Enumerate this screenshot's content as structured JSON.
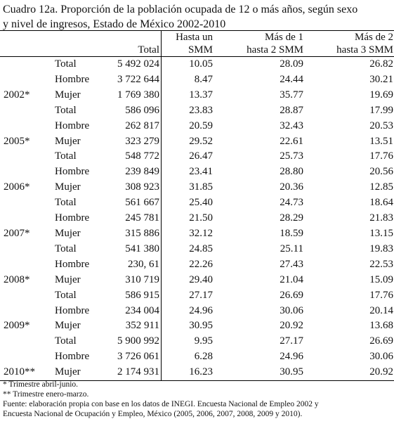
{
  "title": {
    "line1": "Cuadro 12a. Proporción de la población ocupada de 12 o más años, según sexo",
    "line2": "y nivel de ingresos, Estado de México 2002-2010"
  },
  "headers": {
    "hasta_line1": "Hasta un",
    "mas1_line1": "Más de 1",
    "mas2_line1": "Más de 2",
    "total": "Total",
    "hasta_line2": "SMM",
    "mas1_line2": "hasta 2 SMM",
    "mas2_line2": "hasta 3 SMM"
  },
  "rows": [
    {
      "year": "",
      "sexo": "Total",
      "total": "5 492 024",
      "hasta": "10.05",
      "mas1": "28.09",
      "mas2": "26.82"
    },
    {
      "year": "",
      "sexo": "Hombre",
      "total": "3 722 644",
      "hasta": "8.47",
      "mas1": "24.44",
      "mas2": "30.21"
    },
    {
      "year": "2002*",
      "sexo": "Mujer",
      "total": "1 769 380",
      "hasta": "13.37",
      "mas1": "35.77",
      "mas2": "19.69"
    },
    {
      "year": "",
      "sexo": "Total",
      "total": "586 096",
      "hasta": "23.83",
      "mas1": "28.87",
      "mas2": "17.99"
    },
    {
      "year": "",
      "sexo": "Hombre",
      "total": "262 817",
      "hasta": "20.59",
      "mas1": "32.43",
      "mas2": "20.53"
    },
    {
      "year": "2005*",
      "sexo": "Mujer",
      "total": "323 279",
      "hasta": "29.52",
      "mas1": "22.61",
      "mas2": "13.51"
    },
    {
      "year": "",
      "sexo": "Total",
      "total": "548 772",
      "hasta": "26.47",
      "mas1": "25.73",
      "mas2": "17.76"
    },
    {
      "year": "",
      "sexo": "Hombre",
      "total": "239 849",
      "hasta": "23.41",
      "mas1": "28.80",
      "mas2": "20.56"
    },
    {
      "year": "2006*",
      "sexo": "Mujer",
      "total": "308 923",
      "hasta": "31.85",
      "mas1": "20.36",
      "mas2": "12.85"
    },
    {
      "year": "",
      "sexo": "Total",
      "total": "561 667",
      "hasta": "25.40",
      "mas1": "24.73",
      "mas2": "18.64"
    },
    {
      "year": "",
      "sexo": "Hombre",
      "total": "245 781",
      "hasta": "21.50",
      "mas1": "28.29",
      "mas2": "21.83"
    },
    {
      "year": "2007*",
      "sexo": "Mujer",
      "total": "315 886",
      "hasta": "32.12",
      "mas1": "18.59",
      "mas2": "13.15"
    },
    {
      "year": "",
      "sexo": "Total",
      "total": "541 380",
      "hasta": "24.85",
      "mas1": "25.11",
      "mas2": "19.83"
    },
    {
      "year": "",
      "sexo": "Hombre",
      "total": "230, 61",
      "hasta": "22.26",
      "mas1": "27.43",
      "mas2": "22.53"
    },
    {
      "year": "2008*",
      "sexo": "Mujer",
      "total": "310 719",
      "hasta": "29.40",
      "mas1": "21.04",
      "mas2": "15.09"
    },
    {
      "year": "",
      "sexo": "Total",
      "total": "586 915",
      "hasta": "27.17",
      "mas1": "26.69",
      "mas2": "17.76"
    },
    {
      "year": "",
      "sexo": "Hombre",
      "total": "234 004",
      "hasta": "24.96",
      "mas1": "30.06",
      "mas2": "20.14"
    },
    {
      "year": "2009*",
      "sexo": "Mujer",
      "total": "352 911",
      "hasta": "30.95",
      "mas1": "20.92",
      "mas2": "13.68"
    },
    {
      "year": "",
      "sexo": "Total",
      "total": "5 900 992",
      "hasta": "9.95",
      "mas1": "27.17",
      "mas2": "26.69"
    },
    {
      "year": "",
      "sexo": "Hombre",
      "total": "3 726 061",
      "hasta": "6.28",
      "mas1": "24.96",
      "mas2": "30.06"
    },
    {
      "year": "2010**",
      "sexo": "Mujer",
      "total": "2 174 931",
      "hasta": "16.23",
      "mas1": "30.95",
      "mas2": "20.92"
    }
  ],
  "notes": {
    "note1": "* Trimestre abril-junio.",
    "note2": "** Trimestre enero-marzo.",
    "source_line1": "Fuente: elaboración propia con base en los datos de INEGI. Encuesta Nacional de Empleo 2002 y",
    "source_line2": "Encuesta Nacional de Ocupación y Empleo, México (2005, 2006, 2007, 2008, 2009 y 2010)."
  }
}
